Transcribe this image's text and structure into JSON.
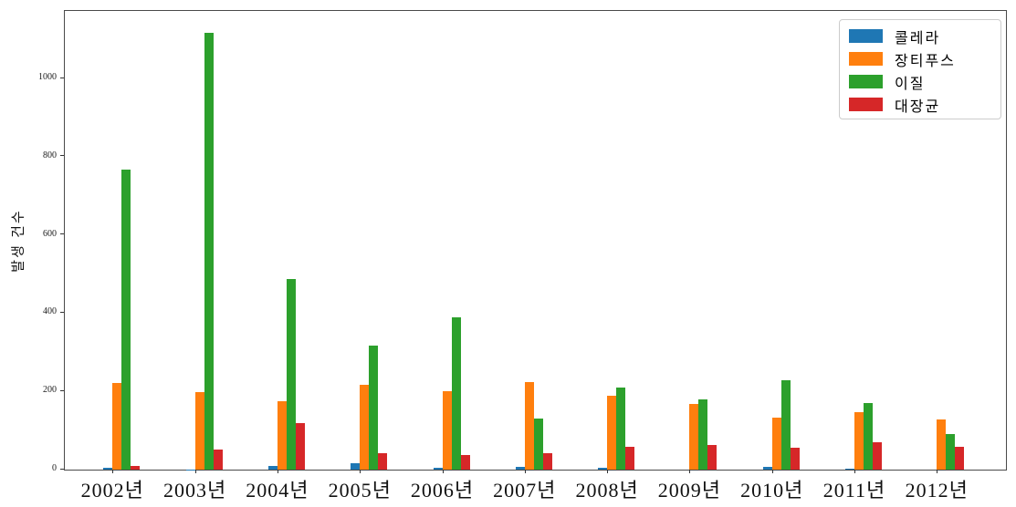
{
  "chart_data": {
    "type": "bar",
    "title": "",
    "xlabel": "",
    "ylabel": "발생 건수",
    "categories": [
      "2002년",
      "2003년",
      "2004년",
      "2005년",
      "2006년",
      "2007년",
      "2008년",
      "2009년",
      "2010년",
      "2011년",
      "2012년"
    ],
    "series": [
      {
        "name": "콜레라",
        "color": "#1f77b4",
        "values": [
          5,
          1,
          10,
          16,
          5,
          7,
          5,
          0,
          8,
          3,
          0
        ]
      },
      {
        "name": "장티푸스",
        "color": "#ff7f0e",
        "values": [
          221,
          199,
          174,
          218,
          200,
          223,
          188,
          168,
          133,
          148,
          129
        ]
      },
      {
        "name": "이질",
        "color": "#2ca02c",
        "values": [
          767,
          1117,
          487,
          317,
          389,
          131,
          209,
          180,
          228,
          171,
          90
        ]
      },
      {
        "name": "대장균",
        "color": "#d62728",
        "values": [
          9,
          52,
          118,
          43,
          37,
          41,
          58,
          62,
          56,
          71,
          58
        ]
      }
    ],
    "yticks": [
      0,
      200,
      400,
      600,
      800,
      1000
    ],
    "ylim": [
      0,
      1173
    ],
    "grid": false,
    "legend_position": "upper right",
    "legend_labels": [
      "콜레라",
      "장티푸스",
      "이질",
      "대장균"
    ]
  }
}
